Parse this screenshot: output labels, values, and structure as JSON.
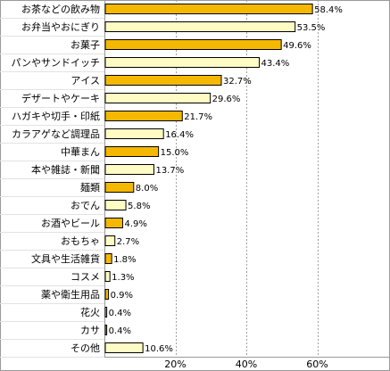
{
  "chart_data": {
    "type": "bar",
    "orientation": "horizontal",
    "categories": [
      "お茶などの飲み物",
      "お弁当やおにぎり",
      "お菓子",
      "パンやサンドイッチ",
      "アイス",
      "デザートやケーキ",
      "ハガキや切手・印紙",
      "カラアゲなど調理品",
      "中華まん",
      "本や雑誌・新聞",
      "麺類",
      "おでん",
      "お酒やビール",
      "おもちゃ",
      "文具や生活雑貨",
      "コスメ",
      "薬や衛生用品",
      "花火",
      "カサ",
      "その他"
    ],
    "values": [
      58.4,
      53.5,
      49.6,
      43.4,
      32.7,
      29.6,
      21.7,
      16.4,
      15.0,
      13.7,
      8.0,
      5.8,
      4.9,
      2.7,
      1.8,
      1.3,
      0.9,
      0.4,
      0.4,
      10.6
    ],
    "value_labels": [
      "58.4%",
      "53.5%",
      "49.6%",
      "43.4%",
      "32.7%",
      "29.6%",
      "21.7%",
      "16.4%",
      "15.0%",
      "13.7%",
      "8.0%",
      "5.8%",
      "4.9%",
      "2.7%",
      "1.8%",
      "1.3%",
      "0.9%",
      "0.4%",
      "0.4%",
      "10.6%"
    ],
    "bar_colors": [
      "#f5b800",
      "#fffbc4"
    ],
    "xlim": [
      0,
      80
    ],
    "xticks": [
      20,
      40,
      60
    ],
    "xtick_labels": [
      "20%",
      "40%",
      "60%"
    ],
    "grid": "vertical dashed",
    "title": "",
    "xlabel": "",
    "ylabel": ""
  }
}
